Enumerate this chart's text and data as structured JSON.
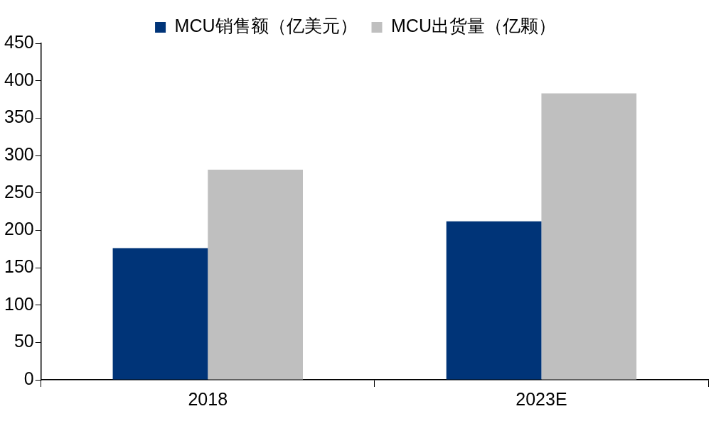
{
  "chart_data": {
    "type": "bar",
    "categories": [
      "2018",
      "2023E"
    ],
    "series": [
      {
        "name": "MCU销售额（亿美元）",
        "color": "#003478",
        "values": [
          176,
          212
        ]
      },
      {
        "name": "MCU出货量（亿颗）",
        "color": "#bfbfbf",
        "values": [
          281,
          383
        ]
      }
    ],
    "ylim": [
      0,
      450
    ],
    "yticks": [
      0,
      50,
      100,
      150,
      200,
      250,
      300,
      350,
      400,
      450
    ],
    "legend": "top"
  }
}
